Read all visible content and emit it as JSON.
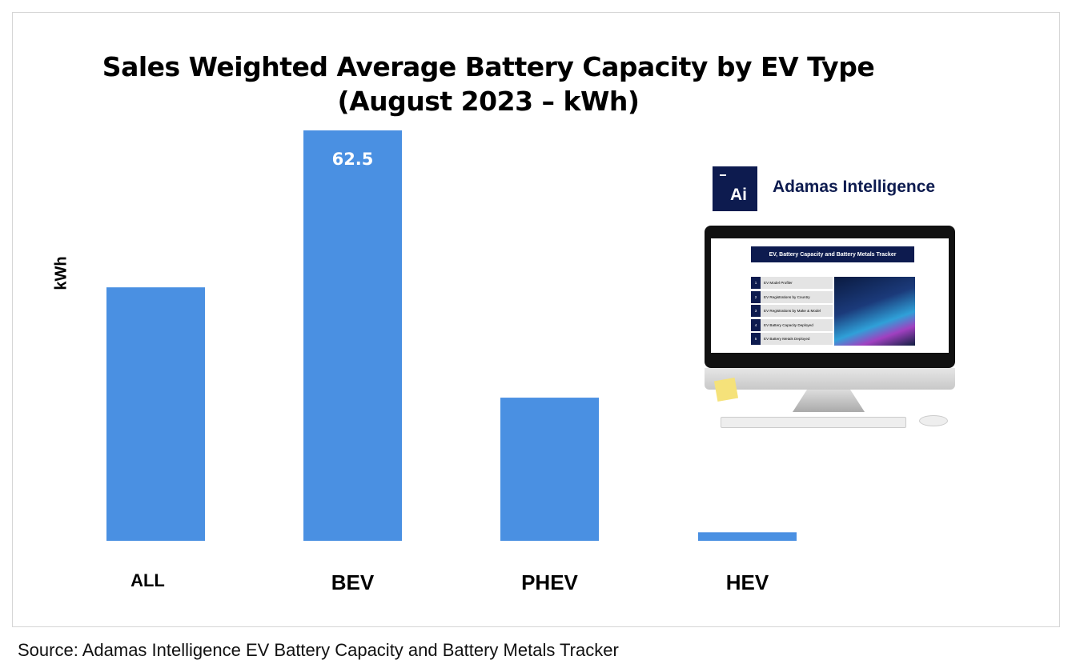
{
  "chart_data": {
    "type": "bar",
    "title": "Sales Weighted Average Battery Capacity by EV Type",
    "subtitle": "(August 2023 – kWh)",
    "xlabel": "",
    "ylabel": "kWh",
    "categories": [
      "ALL",
      "BEV",
      "PHEV",
      "HEV"
    ],
    "values": [
      38.6,
      62.5,
      21.8,
      1.3
    ],
    "data_labels": [
      null,
      "62.5",
      null,
      null
    ],
    "ylim": [
      0,
      62.5
    ],
    "grid": false,
    "bar_color": "#4a90e2"
  },
  "inset": {
    "brand_logo": "Ai",
    "brand_name": "Adamas Intelligence",
    "screen_title": "EV, Battery Capacity and Battery Metals Tracker",
    "screen_items": [
      {
        "num": "1",
        "label": "EV Model Profiler"
      },
      {
        "num": "2",
        "label": "EV Registrations by Country"
      },
      {
        "num": "3",
        "label": "EV Registrations by Make & Model"
      },
      {
        "num": "4",
        "label": "EV Battery Capacity Deployed"
      },
      {
        "num": "5",
        "label": "EV Battery Metals Deployed"
      }
    ]
  },
  "source": "Source: Adamas Intelligence EV Battery Capacity and Battery Metals Tracker"
}
